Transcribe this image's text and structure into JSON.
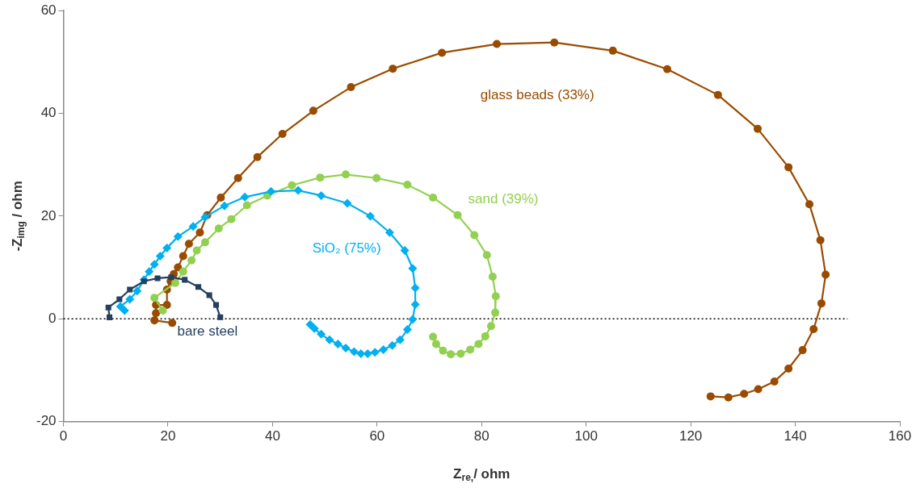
{
  "chart_data": {
    "type": "line",
    "xlabel": "Z$_{re,}$/ ohm",
    "ylabel": "-Z$_{img}$ / ohm",
    "xlim": [
      0,
      160
    ],
    "xticks": [
      0,
      20,
      40,
      60,
      80,
      100,
      120,
      140,
      160
    ],
    "ylim": [
      -20,
      60
    ],
    "yticks": [
      -20,
      0,
      20,
      40,
      60
    ],
    "grid": false,
    "legend": false,
    "line_style": "solid",
    "ref_lines": [
      {
        "axis": "y",
        "value": 0,
        "color": "#000000",
        "line_style": "dotted"
      }
    ],
    "series": [
      {
        "name": "bare steel",
        "color": "#243f60",
        "marker": "square",
        "x": [
          8.8,
          8.6,
          10.7,
          12.7,
          15.4,
          18.0,
          20.6,
          23.2,
          25.8,
          27.9,
          29.2,
          30.0
        ],
        "values": [
          0.3,
          2.2,
          3.8,
          5.7,
          7.3,
          7.9,
          8.1,
          7.6,
          6.2,
          4.6,
          2.7,
          0.3
        ]
      },
      {
        "name": "SiO₂ (75%)",
        "color": "#00b0f0",
        "marker": "diamond",
        "x": [
          11.7,
          10.9,
          12.7,
          14.1,
          15.4,
          16.4,
          17.4,
          18.5,
          19.8,
          21.9,
          24.8,
          27.1,
          30.8,
          34.7,
          39.7,
          44.9,
          49.3,
          54.3,
          58.7,
          62.4,
          65.3,
          66.8,
          67.3,
          67.3,
          66.8,
          65.8,
          64.4,
          62.9,
          61.2,
          59.6,
          58.2,
          56.9,
          55.6,
          54.0,
          52.5,
          50.9,
          49.3,
          48.0,
          47.2
        ],
        "values": [
          1.6,
          2.4,
          3.8,
          5.4,
          7.6,
          9.2,
          10.6,
          12.2,
          13.8,
          16.0,
          18.0,
          19.8,
          22.0,
          23.7,
          24.8,
          25.0,
          24.0,
          22.5,
          20.0,
          16.8,
          13.3,
          9.8,
          6.0,
          2.8,
          -0.1,
          -2.1,
          -4.1,
          -5.2,
          -6.0,
          -6.5,
          -6.8,
          -6.8,
          -6.4,
          -5.7,
          -4.9,
          -4.1,
          -3.0,
          -1.9,
          -1.1
        ]
      },
      {
        "name": "sand (39%)",
        "color": "#92d050",
        "marker": "circle",
        "x": [
          19.0,
          17.4,
          21.4,
          22.9,
          24.5,
          25.5,
          27.1,
          29.7,
          32.1,
          35.1,
          39.0,
          43.7,
          49.1,
          54.0,
          59.9,
          65.8,
          70.7,
          75.4,
          78.6,
          81.0,
          82.1,
          82.7,
          82.6,
          81.8,
          80.7,
          79.4,
          77.8,
          76.0,
          74.1,
          72.6,
          71.3,
          70.7
        ],
        "values": [
          1.6,
          4.1,
          7.0,
          9.2,
          11.4,
          13.3,
          14.9,
          17.6,
          19.4,
          22.1,
          24.0,
          26.0,
          27.5,
          28.1,
          27.4,
          26.1,
          23.6,
          20.2,
          16.3,
          12.4,
          8.2,
          4.4,
          1.2,
          -1.4,
          -3.4,
          -4.9,
          -6.0,
          -6.8,
          -6.9,
          -6.2,
          -4.9,
          -3.5
        ]
      },
      {
        "name": "glass beads (33%)",
        "color": "#994c00",
        "marker": "circle",
        "x": [
          20.8,
          17.4,
          17.7,
          17.7,
          19.8,
          19.8,
          20.5,
          21.1,
          21.9,
          22.9,
          24.0,
          26.1,
          27.5,
          30.1,
          33.4,
          37.1,
          41.9,
          47.8,
          55.0,
          63.0,
          72.4,
          82.9,
          93.9,
          105.1,
          115.5,
          125.2,
          132.8,
          138.7,
          142.7,
          144.8,
          145.8,
          145.0,
          143.5,
          141.4,
          138.7,
          136.0,
          132.9,
          130.2,
          127.2,
          123.8
        ],
        "values": [
          -0.8,
          -0.3,
          1.1,
          2.7,
          2.7,
          5.7,
          7.3,
          8.7,
          10.0,
          12.2,
          14.6,
          16.8,
          20.2,
          23.6,
          27.4,
          31.5,
          36.0,
          40.5,
          45.1,
          48.7,
          51.8,
          53.5,
          53.8,
          52.2,
          48.6,
          43.6,
          37.0,
          29.5,
          22.3,
          15.3,
          8.6,
          3.0,
          -2.0,
          -6.1,
          -9.7,
          -12.2,
          -13.7,
          -14.6,
          -15.3,
          -15.1
        ]
      }
    ]
  }
}
